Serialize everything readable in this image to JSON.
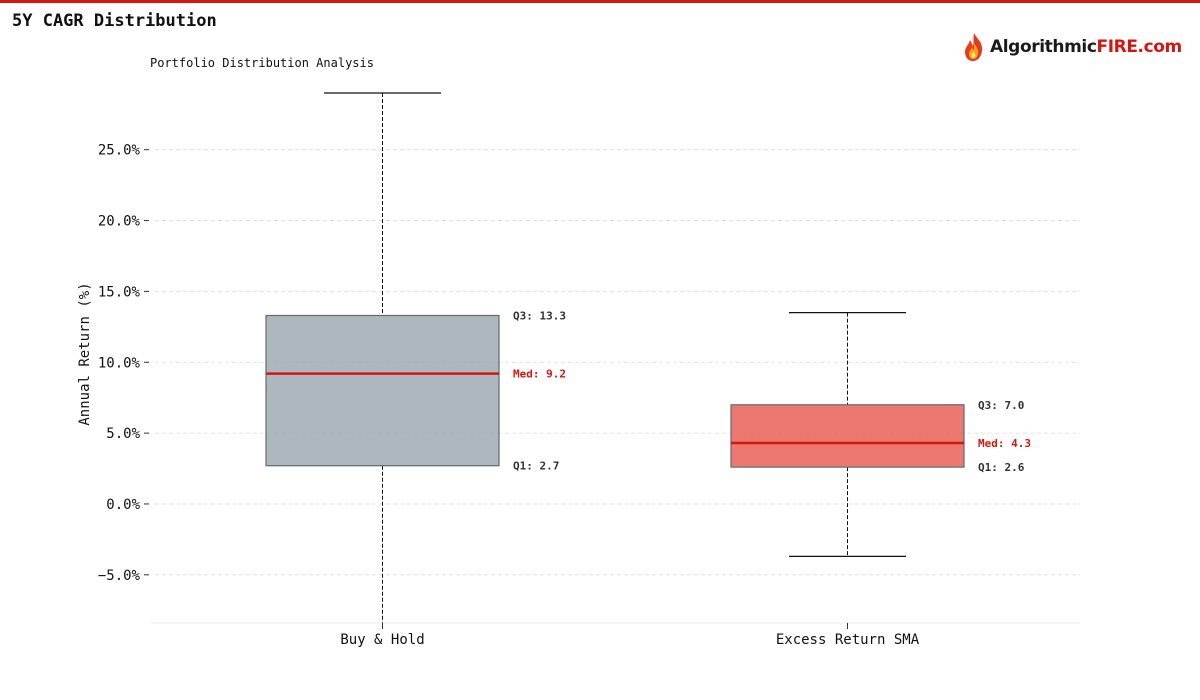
{
  "page": {
    "title": "5Y CAGR Distribution"
  },
  "logo": {
    "text_part1": "Algorithmic",
    "text_part2": "FIRE.com",
    "accent": "#d4160f",
    "icon": "flame-icon"
  },
  "chart_data": {
    "type": "box",
    "title": "Portfolio Distribution Analysis",
    "xlabel": "",
    "ylabel": "Annual Return (%)",
    "ylim": [
      -8.4,
      29.0
    ],
    "yticks": [
      -5,
      0,
      5,
      10,
      15,
      20,
      25
    ],
    "ytick_labels": [
      "−5.0%",
      "0.0%",
      "5.0%",
      "10.0%",
      "15.0%",
      "20.0%",
      "25.0%"
    ],
    "grid": true,
    "categories": [
      "Buy & Hold",
      "Excess Return SMA"
    ],
    "series": [
      {
        "category": "Buy & Hold",
        "whisker_low": -8.4,
        "q1": 2.7,
        "median": 9.2,
        "q3": 13.3,
        "whisker_high": 29.0,
        "q1_label": "Q1: 2.7",
        "median_label": "Med: 9.2",
        "q3_label": "Q3: 13.3",
        "color": "#97a6ad"
      },
      {
        "category": "Excess Return SMA",
        "whisker_low": -3.7,
        "q1": 2.6,
        "median": 4.3,
        "q3": 7.0,
        "whisker_high": 13.5,
        "q1_label": "Q1: 2.6",
        "median_label": "Med: 4.3",
        "q3_label": "Q3: 7.0",
        "color": "#e9564d"
      }
    ],
    "median_color": "#d4160f"
  }
}
